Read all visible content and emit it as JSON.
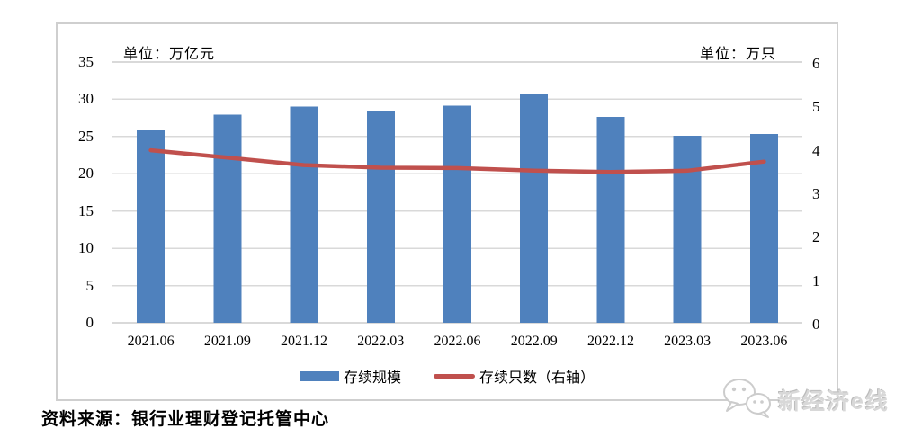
{
  "chart_data": {
    "type": "combo_bar_line",
    "title": "",
    "categories": [
      "2021.06",
      "2021.09",
      "2021.12",
      "2022.03",
      "2022.06",
      "2022.09",
      "2022.12",
      "2023.03",
      "2023.06"
    ],
    "series": [
      {
        "name": "存续规模",
        "chart_type": "bar",
        "axis": "left",
        "color": "#4f81bd",
        "values": [
          25.8,
          27.95,
          29.0,
          28.37,
          29.15,
          30.63,
          27.65,
          25.08,
          25.34
        ]
      },
      {
        "name": "存续只数（右轴）",
        "chart_type": "line",
        "axis": "right",
        "color": "#c0504d",
        "values": [
          3.97,
          3.8,
          3.63,
          3.57,
          3.56,
          3.5,
          3.47,
          3.5,
          3.71
        ]
      }
    ],
    "left_axis": {
      "unit_label": "单位：万亿元",
      "min": 0,
      "max": 35,
      "step": 5
    },
    "right_axis": {
      "unit_label": "单位：万只",
      "min": 0,
      "max": 6,
      "step": 1
    },
    "grid": true,
    "gridline_color": "#d9d9d9",
    "legend_position": "bottom"
  },
  "source_note": "资料来源：银行业理财登记托管中心",
  "watermark": {
    "icon": "wechat-icon",
    "text": "新经济e线"
  }
}
